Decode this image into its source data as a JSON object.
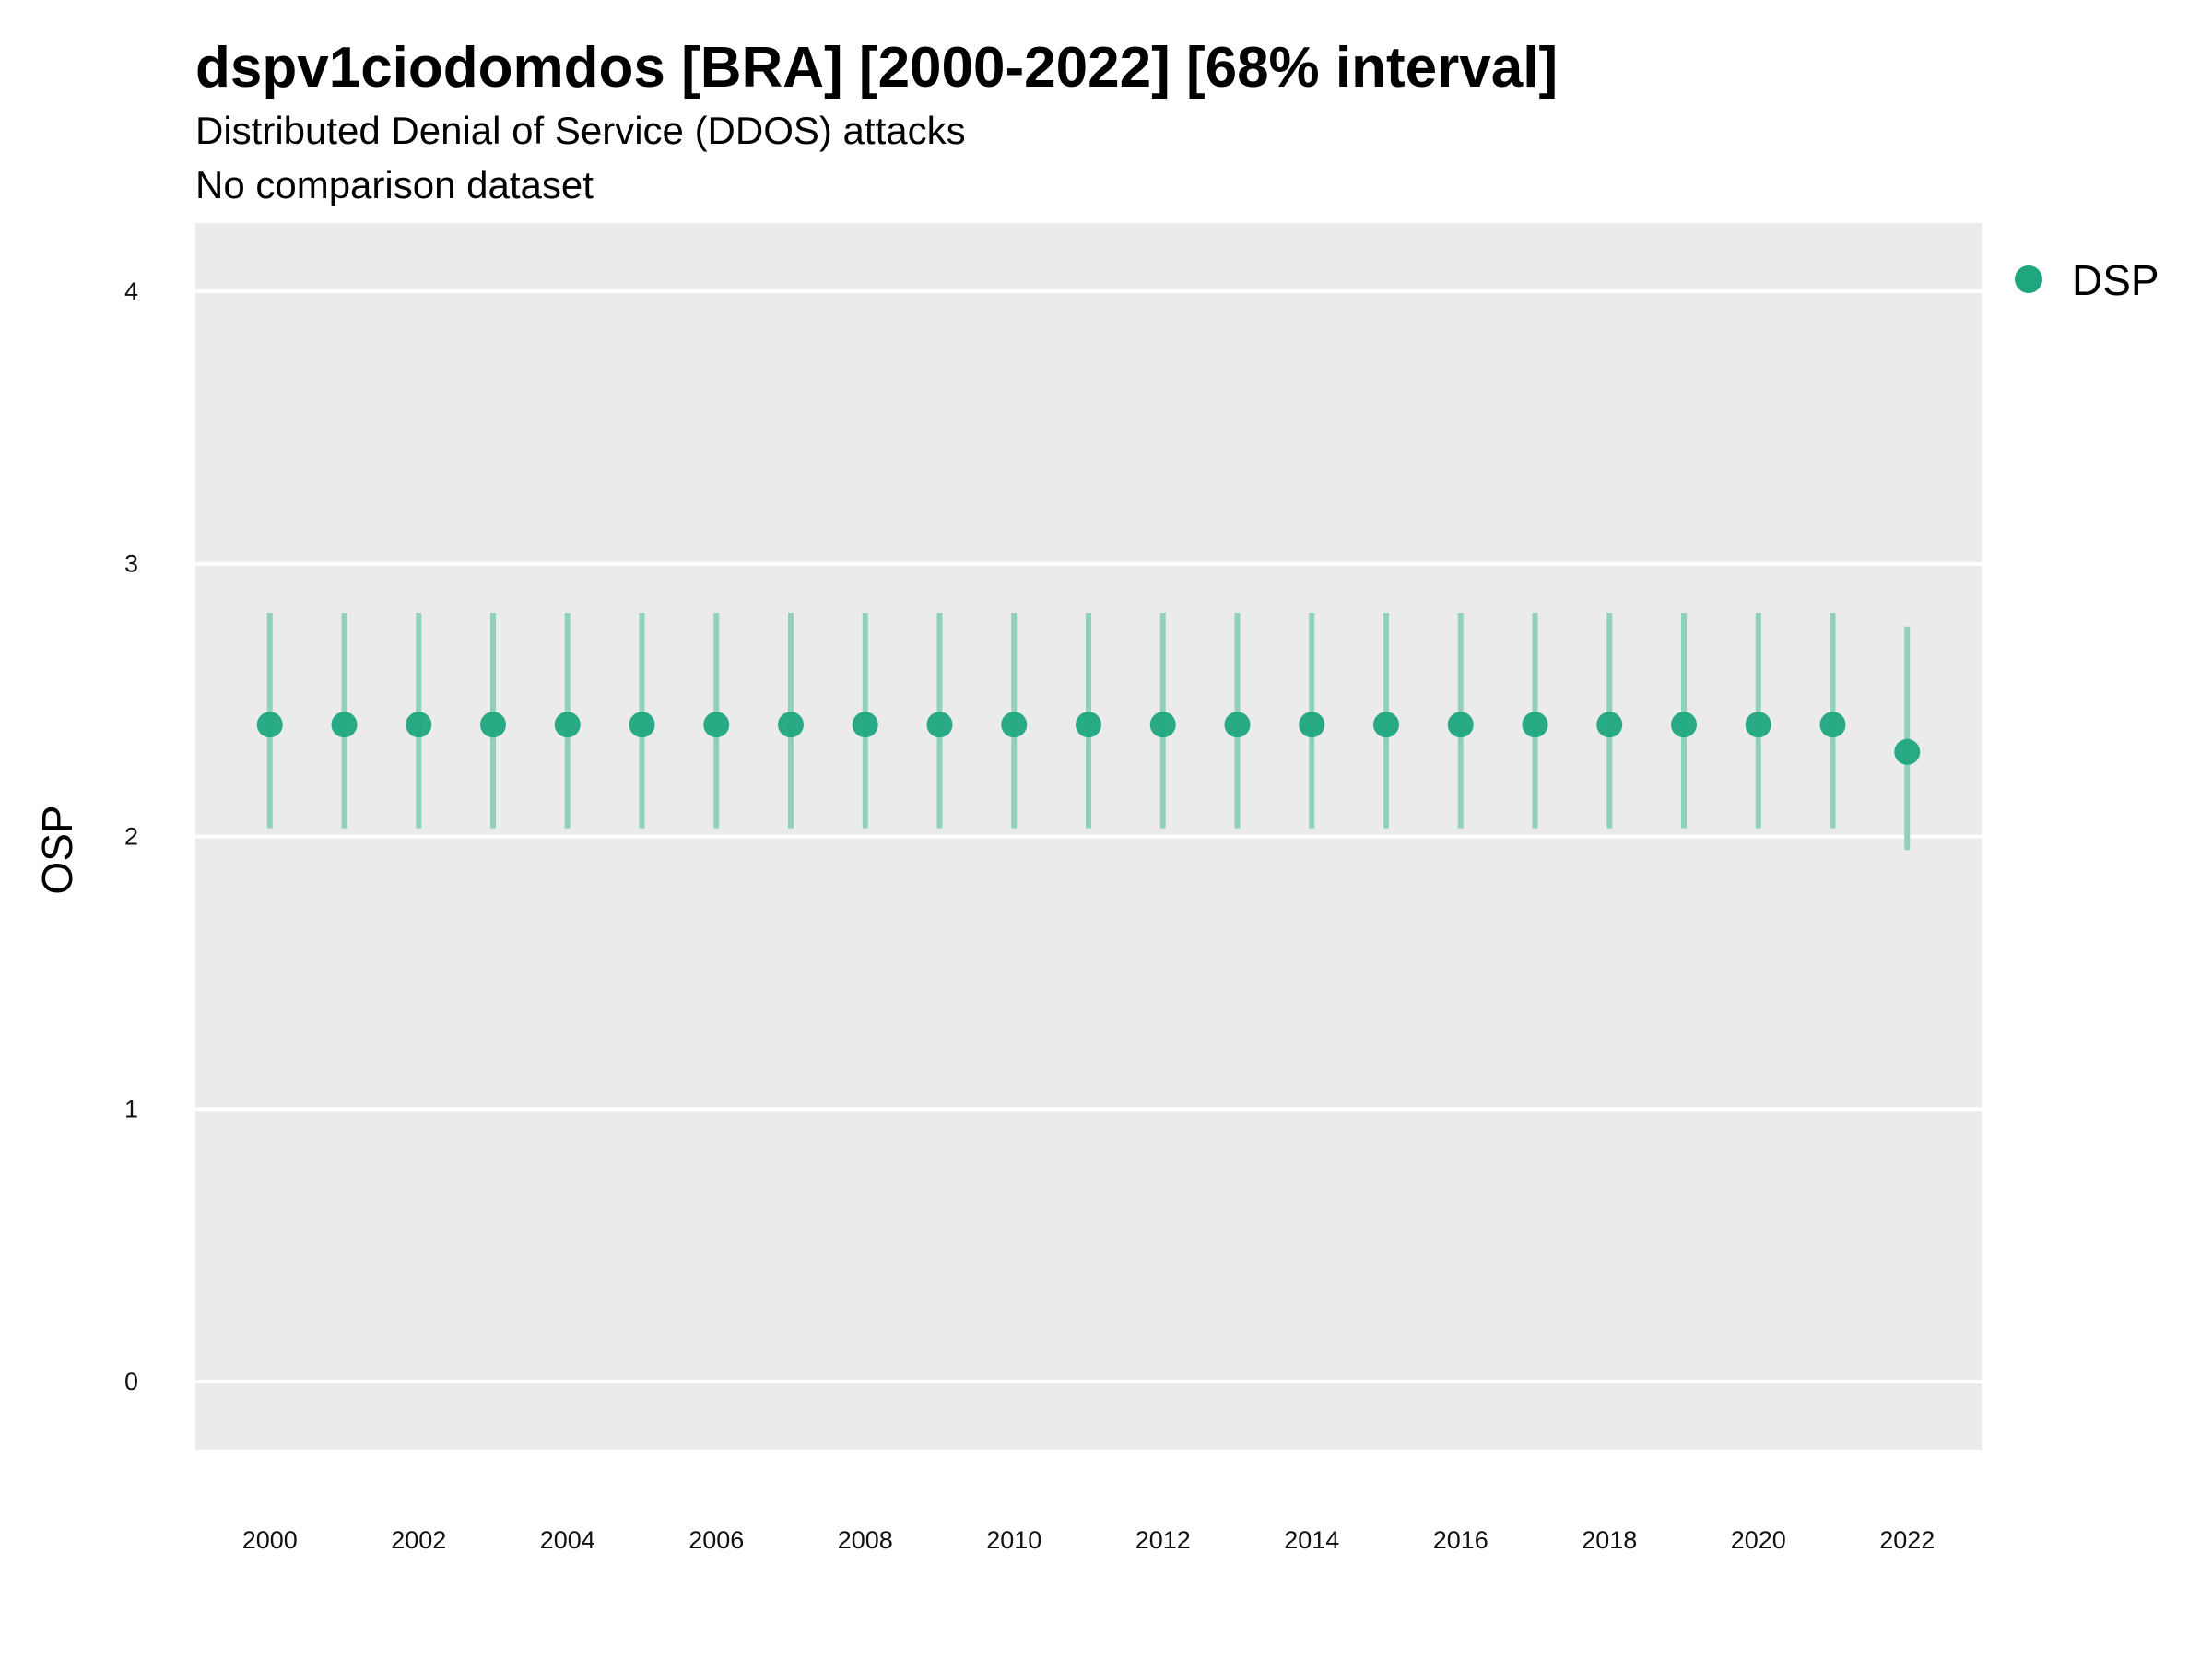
{
  "colors": {
    "panel_background": "#ebebeb",
    "grid_line": "#ffffff",
    "point": "#1fa67f",
    "errorbar": "#8fd1bb"
  },
  "chart_data": {
    "type": "scatter",
    "title": "dspv1ciodomdos [BRA] [2000-2022] [68% interval]",
    "subtitle_lines": [
      "Distributed Denial of Service (DDOS) attacks",
      "No comparison dataset"
    ],
    "xlabel": "",
    "ylabel": "OSP",
    "ylim": [
      -0.25,
      4.25
    ],
    "xlim": [
      1999,
      2023
    ],
    "y_ticks": [
      0,
      1,
      2,
      3,
      4
    ],
    "x_ticks": [
      2000,
      2002,
      2004,
      2006,
      2008,
      2010,
      2012,
      2014,
      2016,
      2018,
      2020,
      2022
    ],
    "grid": true,
    "legend_position": "right",
    "series": [
      {
        "name": "DSP",
        "points": [
          {
            "x": 2000,
            "y": 2.41,
            "lower": 2.03,
            "upper": 2.82
          },
          {
            "x": 2001,
            "y": 2.41,
            "lower": 2.03,
            "upper": 2.82
          },
          {
            "x": 2002,
            "y": 2.41,
            "lower": 2.03,
            "upper": 2.82
          },
          {
            "x": 2003,
            "y": 2.41,
            "lower": 2.03,
            "upper": 2.82
          },
          {
            "x": 2004,
            "y": 2.41,
            "lower": 2.03,
            "upper": 2.82
          },
          {
            "x": 2005,
            "y": 2.41,
            "lower": 2.03,
            "upper": 2.82
          },
          {
            "x": 2006,
            "y": 2.41,
            "lower": 2.03,
            "upper": 2.82
          },
          {
            "x": 2007,
            "y": 2.41,
            "lower": 2.03,
            "upper": 2.82
          },
          {
            "x": 2008,
            "y": 2.41,
            "lower": 2.03,
            "upper": 2.82
          },
          {
            "x": 2009,
            "y": 2.41,
            "lower": 2.03,
            "upper": 2.82
          },
          {
            "x": 2010,
            "y": 2.41,
            "lower": 2.03,
            "upper": 2.82
          },
          {
            "x": 2011,
            "y": 2.41,
            "lower": 2.03,
            "upper": 2.82
          },
          {
            "x": 2012,
            "y": 2.41,
            "lower": 2.03,
            "upper": 2.82
          },
          {
            "x": 2013,
            "y": 2.41,
            "lower": 2.03,
            "upper": 2.82
          },
          {
            "x": 2014,
            "y": 2.41,
            "lower": 2.03,
            "upper": 2.82
          },
          {
            "x": 2015,
            "y": 2.41,
            "lower": 2.03,
            "upper": 2.82
          },
          {
            "x": 2016,
            "y": 2.41,
            "lower": 2.03,
            "upper": 2.82
          },
          {
            "x": 2017,
            "y": 2.41,
            "lower": 2.03,
            "upper": 2.82
          },
          {
            "x": 2018,
            "y": 2.41,
            "lower": 2.03,
            "upper": 2.82
          },
          {
            "x": 2019,
            "y": 2.41,
            "lower": 2.03,
            "upper": 2.82
          },
          {
            "x": 2020,
            "y": 2.41,
            "lower": 2.03,
            "upper": 2.82
          },
          {
            "x": 2021,
            "y": 2.41,
            "lower": 2.03,
            "upper": 2.82
          },
          {
            "x": 2022,
            "y": 2.31,
            "lower": 1.95,
            "upper": 2.77
          }
        ]
      }
    ]
  }
}
